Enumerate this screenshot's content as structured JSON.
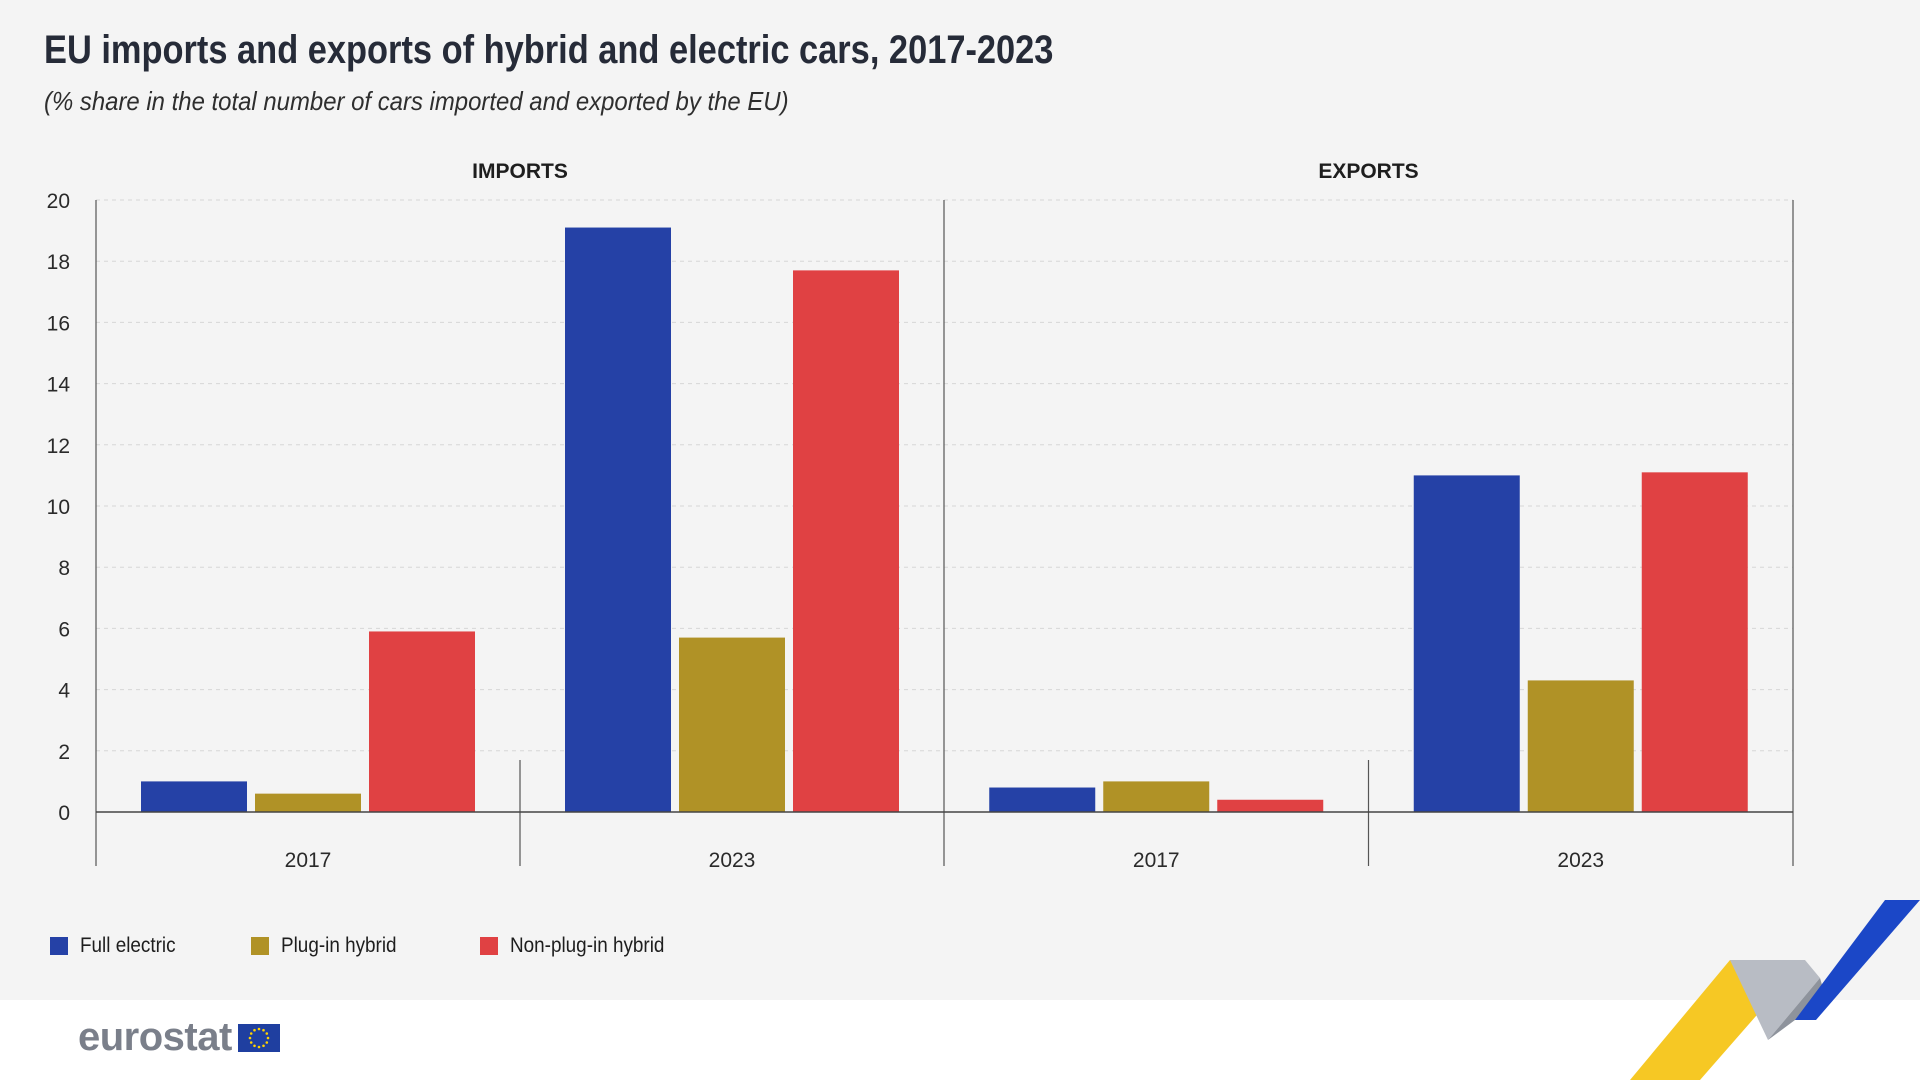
{
  "title": "EU imports and exports of hybrid and electric cars, 2017-2023",
  "subtitle": "(% share in the total number of cars imported and exported by the EU)",
  "brand": "eurostat",
  "colors": {
    "full_electric": "#2541a6",
    "plug_in_hybrid": "#b09226",
    "non_plug_in_hybrid": "#e04143"
  },
  "legend": [
    {
      "label": "Full electric",
      "color": "#2541a6"
    },
    {
      "label": "Plug-in hybrid",
      "color": "#b09226"
    },
    {
      "label": "Non-plug-in hybrid",
      "color": "#e04143"
    }
  ],
  "chart_data": {
    "type": "bar",
    "ylim": [
      0,
      20
    ],
    "yticks": [
      0,
      2,
      4,
      6,
      8,
      10,
      12,
      14,
      16,
      18,
      20
    ],
    "grid": true,
    "legend_position": "bottom-left",
    "panels": [
      {
        "name": "IMPORTS",
        "categories": [
          "2017",
          "2023"
        ],
        "series": [
          {
            "name": "Full electric",
            "values": [
              1.0,
              19.1
            ]
          },
          {
            "name": "Plug-in hybrid",
            "values": [
              0.6,
              5.7
            ]
          },
          {
            "name": "Non-plug-in hybrid",
            "values": [
              5.9,
              17.7
            ]
          }
        ]
      },
      {
        "name": "EXPORTS",
        "categories": [
          "2017",
          "2023"
        ],
        "series": [
          {
            "name": "Full electric",
            "values": [
              0.8,
              11.0
            ]
          },
          {
            "name": "Plug-in hybrid",
            "values": [
              1.0,
              4.3
            ]
          },
          {
            "name": "Non-plug-in hybrid",
            "values": [
              0.4,
              11.1
            ]
          }
        ]
      }
    ]
  }
}
